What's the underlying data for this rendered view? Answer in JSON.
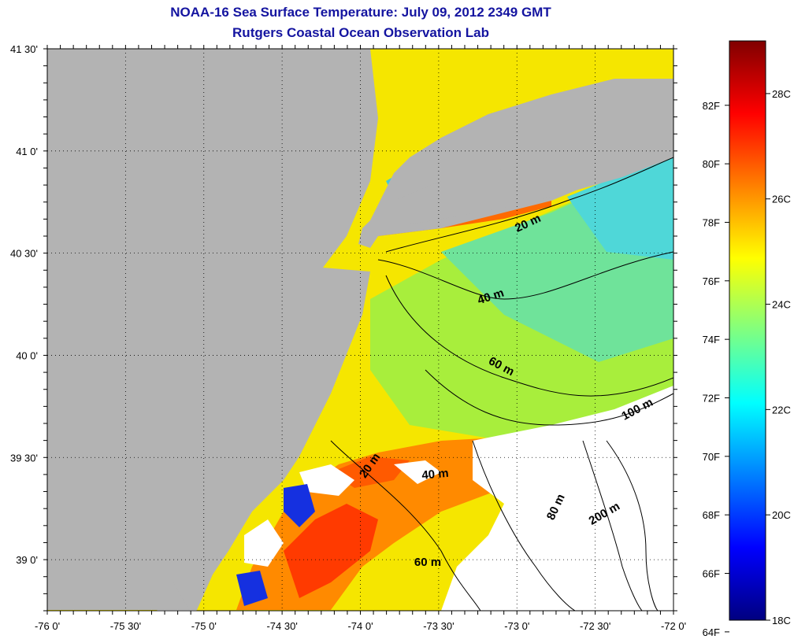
{
  "title": "NOAA-16 Sea Surface Temperature:  July 09, 2012 2349 GMT",
  "subtitle": "Rutgers Coastal Ocean Observation Lab",
  "colors": {
    "land": "#b3b3b3",
    "cloud": "#ffffff",
    "frame": "#000000",
    "title_text": "#1414a0"
  },
  "map": {
    "lon_range": [
      -76,
      -72
    ],
    "lat_range": [
      38.75,
      41.5
    ],
    "x_ticks": [
      {
        "value": -76.0,
        "label": "-76 0'"
      },
      {
        "value": -75.5,
        "label": "-75 30'"
      },
      {
        "value": -75.0,
        "label": "-75 0'"
      },
      {
        "value": -74.5,
        "label": "-74 30'"
      },
      {
        "value": -74.0,
        "label": "-74 0'"
      },
      {
        "value": -73.5,
        "label": "-73 30'"
      },
      {
        "value": -73.0,
        "label": "-73 0'"
      },
      {
        "value": -72.5,
        "label": "-72 30'"
      },
      {
        "value": -72.0,
        "label": "-72 0'"
      }
    ],
    "y_ticks": [
      {
        "value": 41.5,
        "label": "41 30'"
      },
      {
        "value": 41.0,
        "label": "41 0'"
      },
      {
        "value": 40.5,
        "label": "40 30'"
      },
      {
        "value": 40.0,
        "label": "40 0'"
      },
      {
        "value": 39.5,
        "label": "39 30'"
      },
      {
        "value": 39.0,
        "label": "39 0'"
      }
    ],
    "contour_labels": [
      {
        "text": "20 m",
        "lon": -72.92,
        "lat": 40.63,
        "rotate": -25
      },
      {
        "text": "40 m",
        "lon": -73.16,
        "lat": 40.27,
        "rotate": -18
      },
      {
        "text": "60 m",
        "lon": -73.11,
        "lat": 39.93,
        "rotate": 28
      },
      {
        "text": "100 m",
        "lon": -72.22,
        "lat": 39.72,
        "rotate": -28
      },
      {
        "text": "20 m",
        "lon": -73.92,
        "lat": 39.45,
        "rotate": -55
      },
      {
        "text": "40 m",
        "lon": -73.52,
        "lat": 39.4,
        "rotate": -5
      },
      {
        "text": "80 m",
        "lon": -72.73,
        "lat": 39.25,
        "rotate": -65
      },
      {
        "text": "200 m",
        "lon": -72.43,
        "lat": 39.21,
        "rotate": -30
      },
      {
        "text": "60 m",
        "lon": -73.57,
        "lat": 38.97,
        "rotate": 0
      }
    ]
  },
  "colorbar": {
    "gradient": [
      "#000080",
      "#0000ff",
      "#0080ff",
      "#00ffff",
      "#80ff80",
      "#ffff00",
      "#ff8000",
      "#ff0000",
      "#800000"
    ],
    "range_c": [
      18,
      29
    ],
    "fahrenheit_ticks": [
      {
        "value_f": 82,
        "label": "82F"
      },
      {
        "value_f": 80,
        "label": "80F"
      },
      {
        "value_f": 78,
        "label": "78F"
      },
      {
        "value_f": 76,
        "label": "76F"
      },
      {
        "value_f": 74,
        "label": "74F"
      },
      {
        "value_f": 72,
        "label": "72F"
      },
      {
        "value_f": 70,
        "label": "70F"
      },
      {
        "value_f": 68,
        "label": "68F"
      },
      {
        "value_f": 66,
        "label": "66F"
      },
      {
        "value_f": 64,
        "label": "64F"
      }
    ],
    "celsius_ticks": [
      {
        "value_c": 28,
        "label": "28C"
      },
      {
        "value_c": 26,
        "label": "26C"
      },
      {
        "value_c": 24,
        "label": "24C"
      },
      {
        "value_c": 22,
        "label": "22C"
      },
      {
        "value_c": 20,
        "label": "20C"
      },
      {
        "value_c": 18,
        "label": "18C"
      }
    ]
  }
}
